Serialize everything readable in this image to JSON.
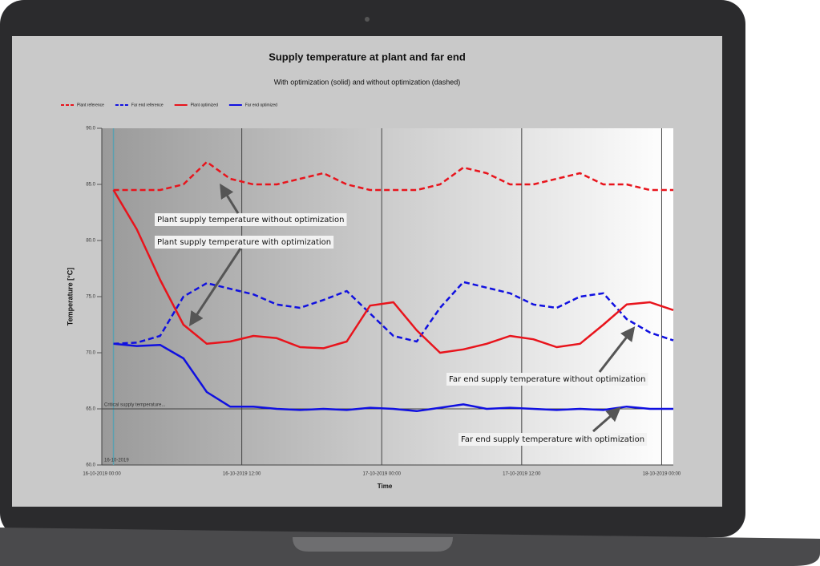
{
  "chart_data": {
    "type": "line",
    "title": "Supply temperature at plant and far end",
    "subtitle": "With optimization (solid) and without optimization (dashed)",
    "x_label": "Time",
    "y_label": "Temperature [°C]",
    "x": [
      1,
      3,
      5,
      7,
      9,
      11,
      13,
      15,
      17,
      19,
      21,
      23,
      25,
      27,
      29,
      31,
      33,
      35,
      37,
      39,
      41,
      43,
      45,
      47,
      49
    ],
    "xlim": [
      0,
      49
    ],
    "xticks": [
      {
        "value": 0,
        "label": "16-10-2019 00:00"
      },
      {
        "value": 12,
        "label": "16-10-2019 12:00"
      },
      {
        "value": 24,
        "label": "17-10-2019 00:00"
      },
      {
        "value": 36,
        "label": "17-10-2019 12:00"
      },
      {
        "value": 48,
        "label": "18-10-2019 00:00"
      }
    ],
    "ylim": [
      60,
      90
    ],
    "yticks": [
      {
        "value": 60,
        "label": "60.0"
      },
      {
        "value": 65,
        "label": "65.0"
      },
      {
        "value": 70,
        "label": "70.0"
      },
      {
        "value": 75,
        "label": "75.0"
      },
      {
        "value": 80,
        "label": "80.0"
      },
      {
        "value": 85,
        "label": "85.0"
      },
      {
        "value": 90,
        "label": "90.0"
      }
    ],
    "grid": true,
    "series": [
      {
        "name": "Plant reference",
        "color": "#e8141c",
        "dashed": true,
        "values": [
          84.5,
          84.5,
          84.5,
          85,
          87,
          85.5,
          85,
          85,
          85.5,
          86,
          85,
          84.5,
          84.5,
          84.5,
          85,
          86.5,
          86,
          85,
          85,
          85.5,
          86,
          85,
          85,
          84.5,
          84.5
        ]
      },
      {
        "name": "Far end reference",
        "color": "#1010e0",
        "dashed": true,
        "values": [
          70.8,
          70.9,
          71.5,
          75,
          76.2,
          75.7,
          75.2,
          74.3,
          74,
          74.7,
          75.5,
          73.5,
          71.5,
          71,
          74,
          76.3,
          75.8,
          75.3,
          74.3,
          74,
          75,
          75.3,
          73,
          71.8,
          71.1
        ]
      },
      {
        "name": "Plant optimized",
        "color": "#e8141c",
        "dashed": false,
        "values": [
          84.5,
          81,
          76.5,
          72.5,
          70.8,
          71,
          71.5,
          71.3,
          70.5,
          70.4,
          71,
          74.2,
          74.5,
          72,
          70,
          70.3,
          70.8,
          71.5,
          71.2,
          70.5,
          70.8,
          72.5,
          74.3,
          74.5,
          73.8
        ]
      },
      {
        "name": "Far end optimized",
        "color": "#1010e0",
        "dashed": false,
        "values": [
          70.8,
          70.6,
          70.7,
          69.5,
          66.5,
          65.2,
          65.2,
          65,
          64.9,
          65,
          64.9,
          65.1,
          65,
          64.8,
          65.1,
          65.4,
          65,
          65.1,
          65,
          64.9,
          65,
          64.9,
          65.2,
          65,
          65
        ]
      }
    ],
    "critical_line": {
      "value": 65,
      "label": "Critical supply temperature..."
    },
    "marker_line": {
      "x": 1,
      "label": "16-10-2019"
    },
    "annotations": [
      "Plant supply temperature without optimization",
      "Plant supply temperature with optimization",
      "Far end supply temperature without optimization",
      "Far end supply temperature with optimization"
    ]
  }
}
